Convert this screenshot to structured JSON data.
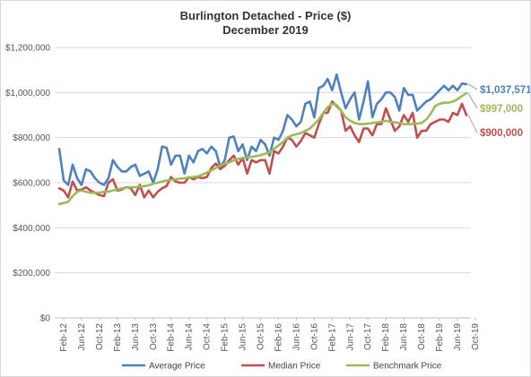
{
  "title": "Burlington Detached - Price ($)",
  "subtitle": "December 2019",
  "chart_data": {
    "type": "line",
    "title": "Burlington Detached - Price ($)",
    "subtitle": "December 2019",
    "ylim": [
      0,
      1200000
    ],
    "y_ticks": [
      "$0",
      "$200,000",
      "$400,000",
      "$600,000",
      "$800,000",
      "$1,000,000",
      "$1,200,000"
    ],
    "x_tick_labels": [
      "Feb-12",
      "Jun-12",
      "Oct-12",
      "Feb-13",
      "Jun-13",
      "Oct-13",
      "Feb-14",
      "Jun-14",
      "Oct-14",
      "Feb-15",
      "Jun-15",
      "Oct-15",
      "Feb-16",
      "Jun-16",
      "Oct-16",
      "Feb-17",
      "Jun-17",
      "Oct-17",
      "Feb-18",
      "Jun-18",
      "Oct-18",
      "Feb-19",
      "Jun-19",
      "Oct-19"
    ],
    "x_start": "Jan-12",
    "x_end": "Dec-19",
    "grid": true,
    "legend_position": "bottom",
    "series": [
      {
        "name": "Average Price",
        "color": "#4f81bd",
        "end_label": "$1,037,571",
        "values": [
          750000,
          610000,
          590000,
          680000,
          620000,
          590000,
          660000,
          650000,
          620000,
          600000,
          590000,
          620000,
          700000,
          670000,
          650000,
          650000,
          670000,
          680000,
          630000,
          640000,
          650000,
          600000,
          660000,
          760000,
          755000,
          680000,
          720000,
          720000,
          640000,
          720000,
          690000,
          740000,
          750000,
          730000,
          760000,
          740000,
          670000,
          700000,
          800000,
          805000,
          740000,
          770000,
          700000,
          760000,
          740000,
          790000,
          770000,
          720000,
          800000,
          790000,
          830000,
          900000,
          880000,
          850000,
          870000,
          950000,
          960000,
          890000,
          1020000,
          1030000,
          1060000,
          1010000,
          1080000,
          1000000,
          930000,
          970000,
          1000000,
          880000,
          960000,
          1050000,
          890000,
          950000,
          970000,
          1000000,
          1000000,
          980000,
          920000,
          1020000,
          990000,
          990000,
          920000,
          940000,
          960000,
          970000,
          990000,
          1010000,
          1030000,
          1010000,
          1030000,
          1010000,
          1040000,
          1037571
        ]
      },
      {
        "name": "Median Price",
        "color": "#c0504d",
        "end_label": "$900,000",
        "values": [
          575000,
          565000,
          535000,
          605000,
          565000,
          570000,
          580000,
          565000,
          555000,
          545000,
          540000,
          600000,
          615000,
          565000,
          570000,
          580000,
          575000,
          545000,
          590000,
          535000,
          565000,
          535000,
          560000,
          575000,
          585000,
          625000,
          605000,
          600000,
          600000,
          625000,
          615000,
          625000,
          620000,
          625000,
          665000,
          685000,
          660000,
          675000,
          700000,
          720000,
          680000,
          710000,
          640000,
          700000,
          690000,
          700000,
          700000,
          640000,
          740000,
          730000,
          760000,
          800000,
          790000,
          760000,
          785000,
          820000,
          810000,
          800000,
          860000,
          910000,
          910000,
          960000,
          940000,
          920000,
          830000,
          850000,
          810000,
          780000,
          840000,
          840000,
          810000,
          860000,
          860000,
          930000,
          880000,
          830000,
          850000,
          900000,
          870000,
          910000,
          800000,
          830000,
          830000,
          860000,
          870000,
          880000,
          880000,
          870000,
          910000,
          900000,
          950000,
          900000
        ]
      },
      {
        "name": "Benchmark Price",
        "color": "#9bbb59",
        "end_label": "$997,000",
        "values": [
          505000,
          510000,
          515000,
          540000,
          560000,
          565000,
          560000,
          555000,
          555000,
          556000,
          560000,
          560000,
          565000,
          570000,
          575000,
          578000,
          580000,
          580000,
          583000,
          585000,
          588000,
          595000,
          600000,
          605000,
          610000,
          612000,
          615000,
          618000,
          620000,
          623000,
          625000,
          628000,
          635000,
          645000,
          655000,
          665000,
          675000,
          685000,
          690000,
          700000,
          705000,
          710000,
          712000,
          715000,
          718000,
          722000,
          728000,
          735000,
          750000,
          765000,
          780000,
          800000,
          810000,
          815000,
          820000,
          830000,
          840000,
          860000,
          880000,
          910000,
          935000,
          950000,
          945000,
          920000,
          890000,
          875000,
          865000,
          860000,
          860000,
          862000,
          865000,
          868000,
          870000,
          875000,
          870000,
          868000,
          865000,
          860000,
          860000,
          860000,
          862000,
          865000,
          880000,
          905000,
          940000,
          950000,
          955000,
          955000,
          960000,
          970000,
          985000,
          997000
        ]
      }
    ]
  }
}
